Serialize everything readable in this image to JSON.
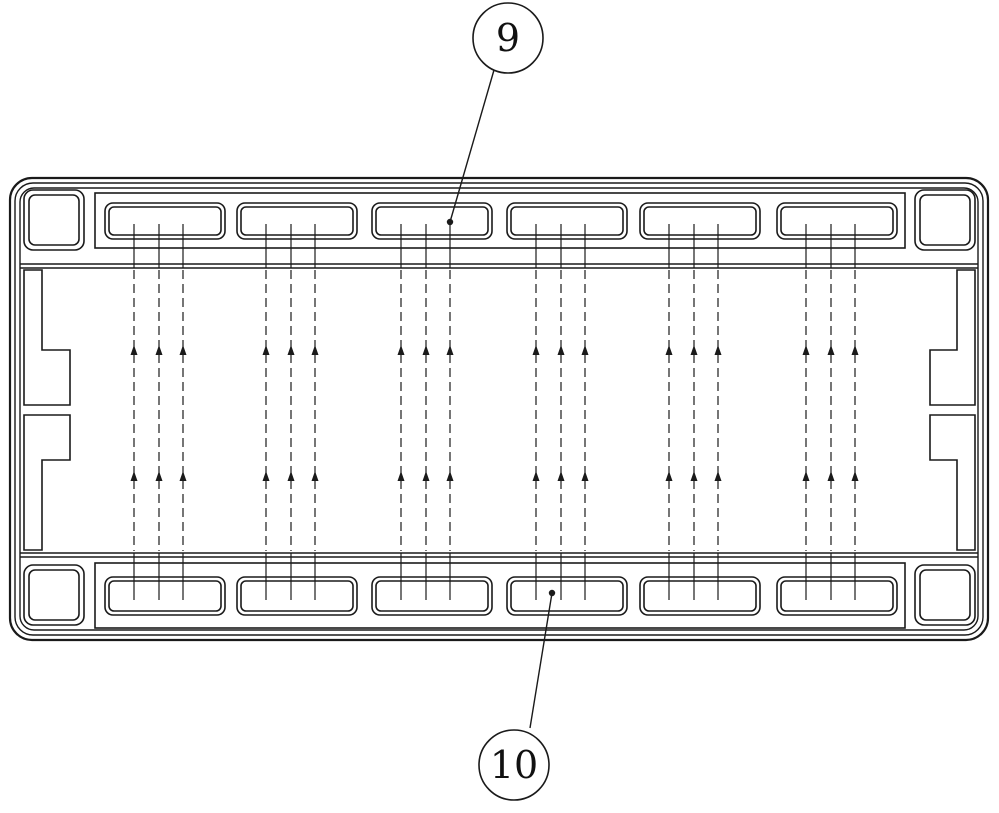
{
  "callouts": [
    {
      "id": "top",
      "label": "9"
    },
    {
      "id": "bottom",
      "label": "10"
    }
  ],
  "layout_counts": {
    "channel_slots_per_row": 6,
    "flow_lines_per_slot": 3,
    "arrow_rows": 2
  },
  "colors": {
    "line": "#1a1a1a",
    "background": "#ffffff"
  }
}
